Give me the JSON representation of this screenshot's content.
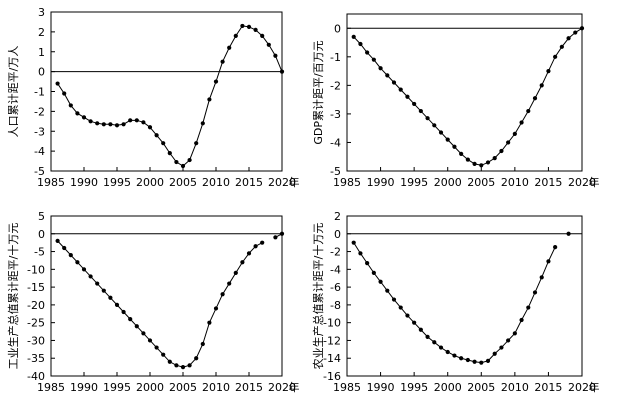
{
  "figure": {
    "background": "#ffffff",
    "line_color": "#000000"
  },
  "chart_data": [
    {
      "type": "line",
      "title": "",
      "xlabel": "年",
      "ylabel": "人口累计距平/万人",
      "xlim": [
        1985,
        2020
      ],
      "ylim": [
        -5,
        3
      ],
      "xticks": [
        1985,
        1990,
        1995,
        2000,
        2005,
        2010,
        2015,
        2020
      ],
      "yticks": [
        -5,
        -4,
        -3,
        -2,
        -1,
        0,
        1,
        2,
        3
      ],
      "baseline": 0,
      "grid": false,
      "legend": "none",
      "series": [
        {
          "x": [
            1986,
            1987,
            1988,
            1989,
            1990,
            1991,
            1992,
            1993,
            1994,
            1995,
            1996,
            1997,
            1998,
            1999,
            2000,
            2001,
            2002,
            2003,
            2004,
            2005,
            2006,
            2007,
            2008,
            2009,
            2010,
            2011,
            2012,
            2013,
            2014,
            2015,
            2016,
            2017,
            2018,
            2019,
            2020
          ],
          "values": [
            -0.6,
            -1.1,
            -1.7,
            -2.1,
            -2.3,
            -2.5,
            -2.6,
            -2.65,
            -2.65,
            -2.7,
            -2.65,
            -2.45,
            -2.45,
            -2.55,
            -2.8,
            -3.2,
            -3.6,
            -4.1,
            -4.55,
            -4.75,
            -4.45,
            -3.6,
            -2.6,
            -1.4,
            -0.5,
            0.5,
            1.2,
            1.8,
            2.3,
            2.25,
            2.1,
            1.8,
            1.35,
            0.8,
            0.0
          ]
        }
      ]
    },
    {
      "type": "line",
      "title": "",
      "xlabel": "年",
      "ylabel": "GDP累计距平/百万元",
      "xlim": [
        1985,
        2020
      ],
      "ylim": [
        -5,
        0.5
      ],
      "xticks": [
        1985,
        1990,
        1995,
        2000,
        2005,
        2010,
        2015,
        2020
      ],
      "yticks": [
        -5,
        -4,
        -3,
        -2,
        -1,
        0
      ],
      "baseline": 0,
      "grid": false,
      "legend": "none",
      "series": [
        {
          "x": [
            1986,
            1987,
            1988,
            1989,
            1990,
            1991,
            1992,
            1993,
            1994,
            1995,
            1996,
            1997,
            1998,
            1999,
            2000,
            2001,
            2002,
            2003,
            2004,
            2005,
            2006,
            2007,
            2008,
            2009,
            2010,
            2011,
            2012,
            2013,
            2014,
            2015,
            2016,
            2017,
            2018,
            2019,
            2020
          ],
          "values": [
            -0.3,
            -0.55,
            -0.85,
            -1.1,
            -1.4,
            -1.65,
            -1.9,
            -2.15,
            -2.4,
            -2.65,
            -2.9,
            -3.15,
            -3.4,
            -3.65,
            -3.9,
            -4.15,
            -4.4,
            -4.6,
            -4.75,
            -4.8,
            -4.7,
            -4.55,
            -4.3,
            -4.0,
            -3.7,
            -3.3,
            -2.9,
            -2.45,
            -2.0,
            -1.5,
            -1.0,
            -0.65,
            -0.35,
            -0.15,
            0.0
          ]
        }
      ]
    },
    {
      "type": "line",
      "title": "",
      "xlabel": "年",
      "ylabel": "工业生产总值累计距平/十万元",
      "xlim": [
        1985,
        2020
      ],
      "ylim": [
        -40,
        5
      ],
      "xticks": [
        1985,
        1990,
        1995,
        2000,
        2005,
        2010,
        2015,
        2020
      ],
      "yticks": [
        -40,
        -35,
        -30,
        -25,
        -20,
        -15,
        -10,
        -5,
        0,
        5
      ],
      "baseline": 0,
      "grid": false,
      "legend": "none",
      "series": [
        {
          "x": [
            1986,
            1987,
            1988,
            1989,
            1990,
            1991,
            1992,
            1993,
            1994,
            1995,
            1996,
            1997,
            1998,
            1999,
            2000,
            2001,
            2002,
            2003,
            2004,
            2005,
            2006,
            2007,
            2008,
            2009,
            2010,
            2011,
            2012,
            2013,
            2014,
            2015,
            2016,
            2017
          ],
          "values": [
            -2.0,
            -4.0,
            -6.0,
            -8.0,
            -10.0,
            -12.0,
            -14.0,
            -16.0,
            -18.0,
            -20.0,
            -22.0,
            -24.0,
            -26.0,
            -28.0,
            -30.0,
            -32.0,
            -34.0,
            -36.0,
            -37.0,
            -37.5,
            -37.0,
            -35.0,
            -31.0,
            -25.0,
            -21.0,
            -17.0,
            -14.0,
            -11.0,
            -8.0,
            -5.5,
            -3.5,
            -2.5
          ]
        },
        {
          "x": [
            2019,
            2020
          ],
          "values": [
            -1.0,
            0.0
          ]
        }
      ]
    },
    {
      "type": "line",
      "title": "",
      "xlabel": "年",
      "ylabel": "农业生产总值累计距平/十万元",
      "xlim": [
        1985,
        2020
      ],
      "ylim": [
        -16,
        2
      ],
      "xticks": [
        1985,
        1990,
        1995,
        2000,
        2005,
        2010,
        2015,
        2020
      ],
      "yticks": [
        -16,
        -14,
        -12,
        -10,
        -8,
        -6,
        -4,
        -2,
        0,
        2
      ],
      "baseline": 0,
      "grid": false,
      "legend": "none",
      "series": [
        {
          "x": [
            1986,
            1987,
            1988,
            1989,
            1990,
            1991,
            1992,
            1993,
            1994,
            1995,
            1996,
            1997,
            1998,
            1999,
            2000,
            2001,
            2002,
            2003,
            2004,
            2005,
            2006,
            2007,
            2008,
            2009,
            2010,
            2011,
            2012,
            2013,
            2014,
            2015,
            2016
          ],
          "values": [
            -1.0,
            -2.2,
            -3.3,
            -4.4,
            -5.4,
            -6.4,
            -7.4,
            -8.3,
            -9.2,
            -10.0,
            -10.8,
            -11.6,
            -12.2,
            -12.8,
            -13.3,
            -13.7,
            -14.0,
            -14.2,
            -14.4,
            -14.5,
            -14.3,
            -13.5,
            -12.8,
            -12.0,
            -11.2,
            -9.7,
            -8.3,
            -6.6,
            -4.9,
            -3.1,
            -1.5
          ]
        },
        {
          "x": [
            2018
          ],
          "values": [
            0.0
          ]
        }
      ]
    }
  ]
}
